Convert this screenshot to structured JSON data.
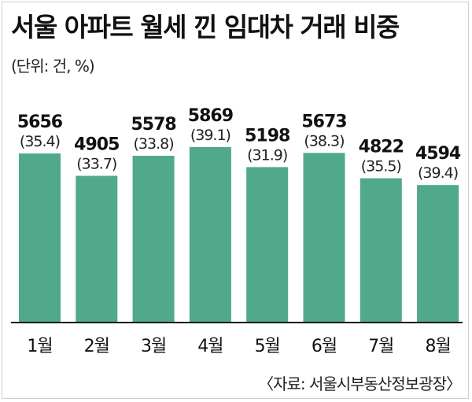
{
  "header": {
    "title": "서울 아파트 월세 낀 임대차 거래 비중",
    "unit": "(단위: 건, %)"
  },
  "footer": {
    "source": "〈자료: 서울시부동산정보광장〉"
  },
  "colors": {
    "bar": "#4fa98a",
    "baseline": "#1a1a1a"
  },
  "chart_data": {
    "type": "bar",
    "title": "서울 아파트 월세 낀 임대차 거래 비중",
    "xlabel": "",
    "ylabel": "",
    "ylim": [
      0,
      5869
    ],
    "grid": false,
    "categories": [
      "1월",
      "2월",
      "3월",
      "4월",
      "5월",
      "6월",
      "7월",
      "8월"
    ],
    "series": [
      {
        "values": [
          5656,
          4905,
          5578,
          5869,
          5198,
          5673,
          4822,
          4594
        ]
      }
    ],
    "data_labels": [
      "5656",
      "4905",
      "5578",
      "5869",
      "5198",
      "5673",
      "4822",
      "4594"
    ],
    "share_labels": [
      "(35.4)",
      "(33.7)",
      "(33.8)",
      "(39.1)",
      "(31.9)",
      "(38.3)",
      "(35.5)",
      "(39.4)"
    ]
  }
}
